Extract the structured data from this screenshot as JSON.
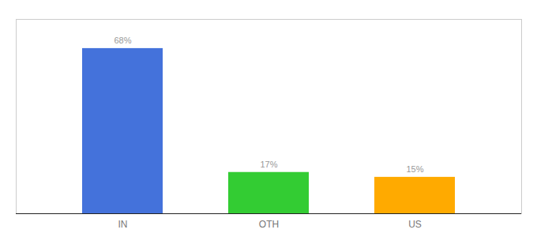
{
  "chart_data": {
    "type": "bar",
    "categories": [
      "IN",
      "OTH",
      "US"
    ],
    "values": [
      68,
      17,
      15
    ],
    "value_labels": [
      "68%",
      "17%",
      "15%"
    ],
    "colors": [
      "#4472db",
      "#33cc33",
      "#ffaa00"
    ],
    "ylim": [
      0,
      80
    ],
    "data_labels": true,
    "tick_labels": "x"
  }
}
